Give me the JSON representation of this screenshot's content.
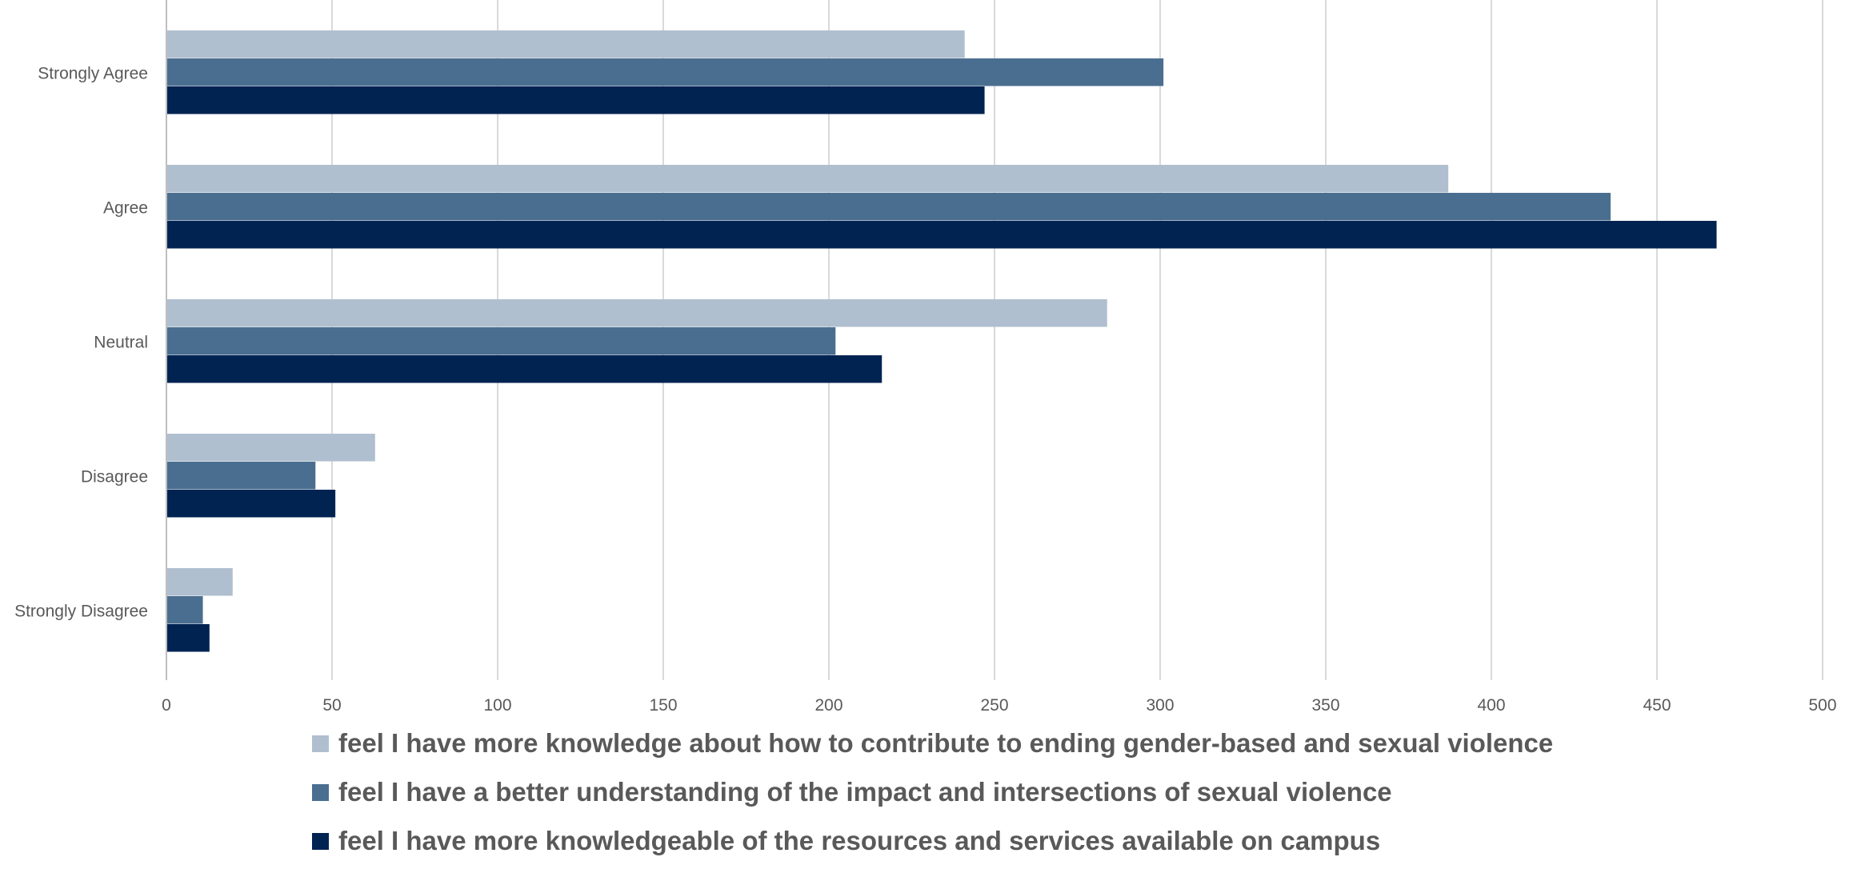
{
  "chart_data": {
    "type": "bar",
    "orientation": "horizontal",
    "categories": [
      "Strongly Agree",
      "Agree",
      "Neutral",
      "Disagree",
      "Strongly Disagree"
    ],
    "series": [
      {
        "name": "feel I have more knowledge about how to contribute to ending gender-based and sexual violence",
        "color": "#b0bfcf",
        "values": [
          241,
          387,
          284,
          63,
          20
        ]
      },
      {
        "name": "feel I have a better understanding of the impact and intersections of sexual violence",
        "color": "#4a6e90",
        "values": [
          301,
          436,
          202,
          45,
          11
        ]
      },
      {
        "name": "feel I have more knowledgeable of the resources and services available on campus",
        "color": "#002352",
        "values": [
          247,
          468,
          216,
          51,
          13
        ]
      }
    ],
    "xlim": [
      0,
      500
    ],
    "xticks": [
      0,
      50,
      100,
      150,
      200,
      250,
      300,
      350,
      400,
      450,
      500
    ],
    "grid": "vertical",
    "legend_position": "bottom",
    "title": "",
    "xlabel": "",
    "ylabel": ""
  }
}
